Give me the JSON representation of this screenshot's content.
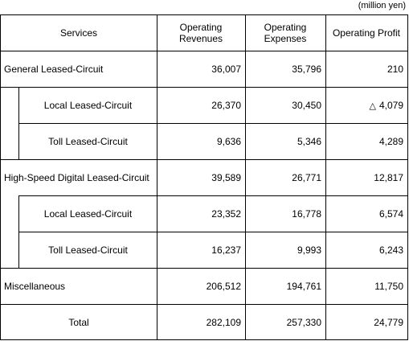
{
  "unit_note": "(million yen)",
  "headers": {
    "services": "Services",
    "revenues_line1": "Operating",
    "revenues_line2": "Revenues",
    "expenses_line1": "Operating",
    "expenses_line2": "Expenses",
    "profit": "Operating Profit"
  },
  "rows": [
    {
      "label": "General Leased-Circuit",
      "revenues": "36,007",
      "expenses": "35,796",
      "profit": "210"
    },
    {
      "label": "Local Leased-Circuit",
      "revenues": "26,370",
      "expenses": "30,450",
      "profit_symbol": "△",
      "profit": "4,079"
    },
    {
      "label": "Toll Leased-Circuit",
      "revenues": "9,636",
      "expenses": "5,346",
      "profit": "4,289"
    },
    {
      "label": "High-Speed Digital Leased-Circuit",
      "revenues": "39,589",
      "expenses": "26,771",
      "profit": "12,817"
    },
    {
      "label": "Local Leased-Circuit",
      "revenues": "23,352",
      "expenses": "16,778",
      "profit": "6,574"
    },
    {
      "label": "Toll Leased-Circuit",
      "revenues": "16,237",
      "expenses": "9,993",
      "profit": "6,243"
    },
    {
      "label": "Miscellaneous",
      "revenues": "206,512",
      "expenses": "194,761",
      "profit": "11,750"
    },
    {
      "label": "Total",
      "revenues": "282,109",
      "expenses": "257,330",
      "profit": "24,779"
    }
  ]
}
